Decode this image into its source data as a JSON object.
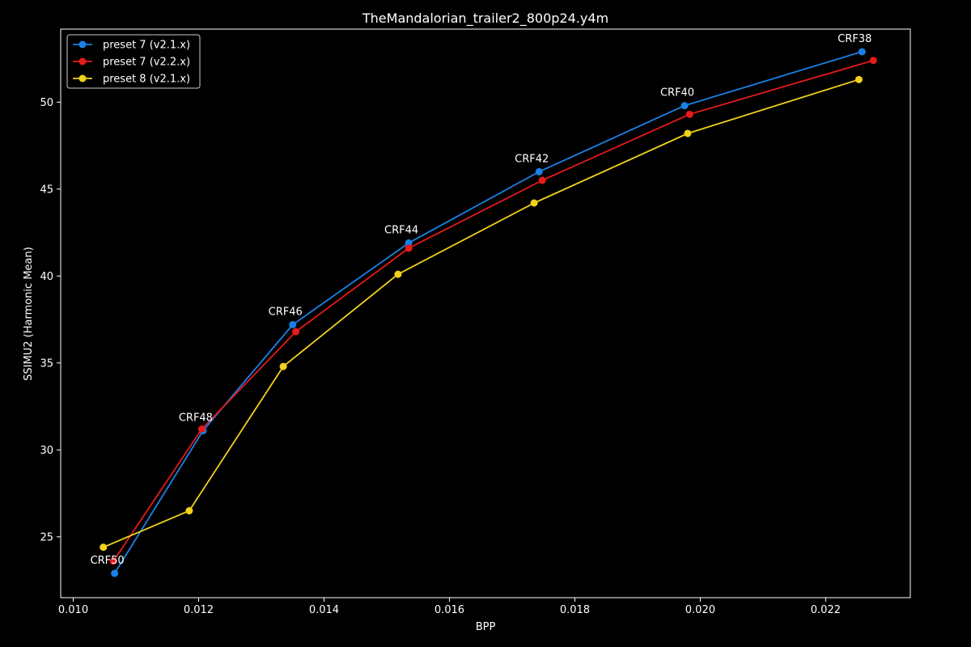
{
  "chart_data": {
    "type": "line",
    "title": "TheMandalorian_trailer2_800p24.y4m",
    "xlabel": "BPP",
    "ylabel": "SSIMU2 (Harmonic Mean)",
    "xlim": [
      0.0098,
      0.02335
    ],
    "ylim": [
      21.5,
      54.2
    ],
    "xticks": [
      0.01,
      0.012,
      0.014,
      0.016,
      0.018,
      0.02,
      0.022
    ],
    "xtick_labels": [
      "0.010",
      "0.012",
      "0.014",
      "0.016",
      "0.018",
      "0.020",
      "0.022"
    ],
    "yticks": [
      25,
      30,
      35,
      40,
      45,
      50
    ],
    "ytick_labels": [
      "25",
      "30",
      "35",
      "40",
      "45",
      "50"
    ],
    "grid": false,
    "legend_position": "top-left",
    "background": "#000000",
    "series": [
      {
        "name": "preset 7 (v2.1.x)",
        "color": "#1a80e6",
        "x": [
          0.01066,
          0.01207,
          0.0135,
          0.01535,
          0.01743,
          0.01975,
          0.02258
        ],
        "y": [
          22.9,
          31.1,
          37.2,
          41.9,
          46.0,
          49.8,
          52.9
        ]
      },
      {
        "name": "preset 7 (v2.2.x)",
        "color": "#e61a1a",
        "x": [
          0.01064,
          0.01205,
          0.01355,
          0.01535,
          0.01748,
          0.01983,
          0.02276
        ],
        "y": [
          23.6,
          31.2,
          36.8,
          41.6,
          45.5,
          49.3,
          52.4
        ]
      },
      {
        "name": "preset 8 (v2.1.x)",
        "color": "#f2d21a",
        "x": [
          0.01048,
          0.01185,
          0.01335,
          0.01518,
          0.01735,
          0.0198,
          0.02253
        ],
        "y": [
          24.4,
          26.5,
          34.8,
          40.1,
          44.2,
          48.2,
          51.3
        ]
      }
    ],
    "annotations": [
      {
        "text": "CRF50",
        "x": 0.01066,
        "y": 22.9
      },
      {
        "text": "CRF48",
        "x": 0.01207,
        "y": 31.1
      },
      {
        "text": "CRF46",
        "x": 0.0135,
        "y": 37.2
      },
      {
        "text": "CRF44",
        "x": 0.01535,
        "y": 41.9
      },
      {
        "text": "CRF42",
        "x": 0.01743,
        "y": 46.0
      },
      {
        "text": "CRF40",
        "x": 0.01975,
        "y": 49.8
      },
      {
        "text": "CRF38",
        "x": 0.02258,
        "y": 52.9
      }
    ]
  }
}
